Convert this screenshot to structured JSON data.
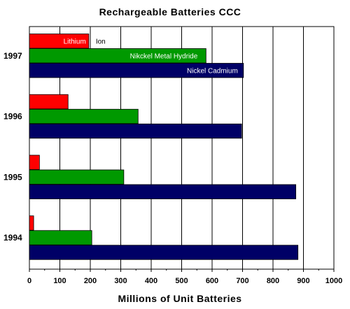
{
  "chart_data": {
    "type": "bar",
    "orientation": "horizontal",
    "title": "Rechargeable Batteries CCC",
    "xlabel": "Millions of Unit Batteries",
    "ylabel": "",
    "xlim": [
      0,
      1000
    ],
    "xticks": [
      "0",
      "100",
      "200",
      "300",
      "400",
      "500",
      "600",
      "700",
      "800",
      "900",
      "1000"
    ],
    "grid": "vertical",
    "legend_placement": "inline-labels on 1997 bars",
    "categories": [
      "1997",
      "1996",
      "1995",
      "1994"
    ],
    "series": [
      {
        "name": "Lithium Ion",
        "label_parts": [
          "Lithium",
          "Ion"
        ],
        "color": "#ff0000",
        "values": [
          195,
          127,
          33,
          14
        ]
      },
      {
        "name": "Nikckel Metal Hydride",
        "color": "#009900",
        "values": [
          580,
          357,
          310,
          205
        ]
      },
      {
        "name": "Nickel Cadmium",
        "color": "#000066",
        "values": [
          703,
          697,
          875,
          882
        ]
      }
    ]
  }
}
